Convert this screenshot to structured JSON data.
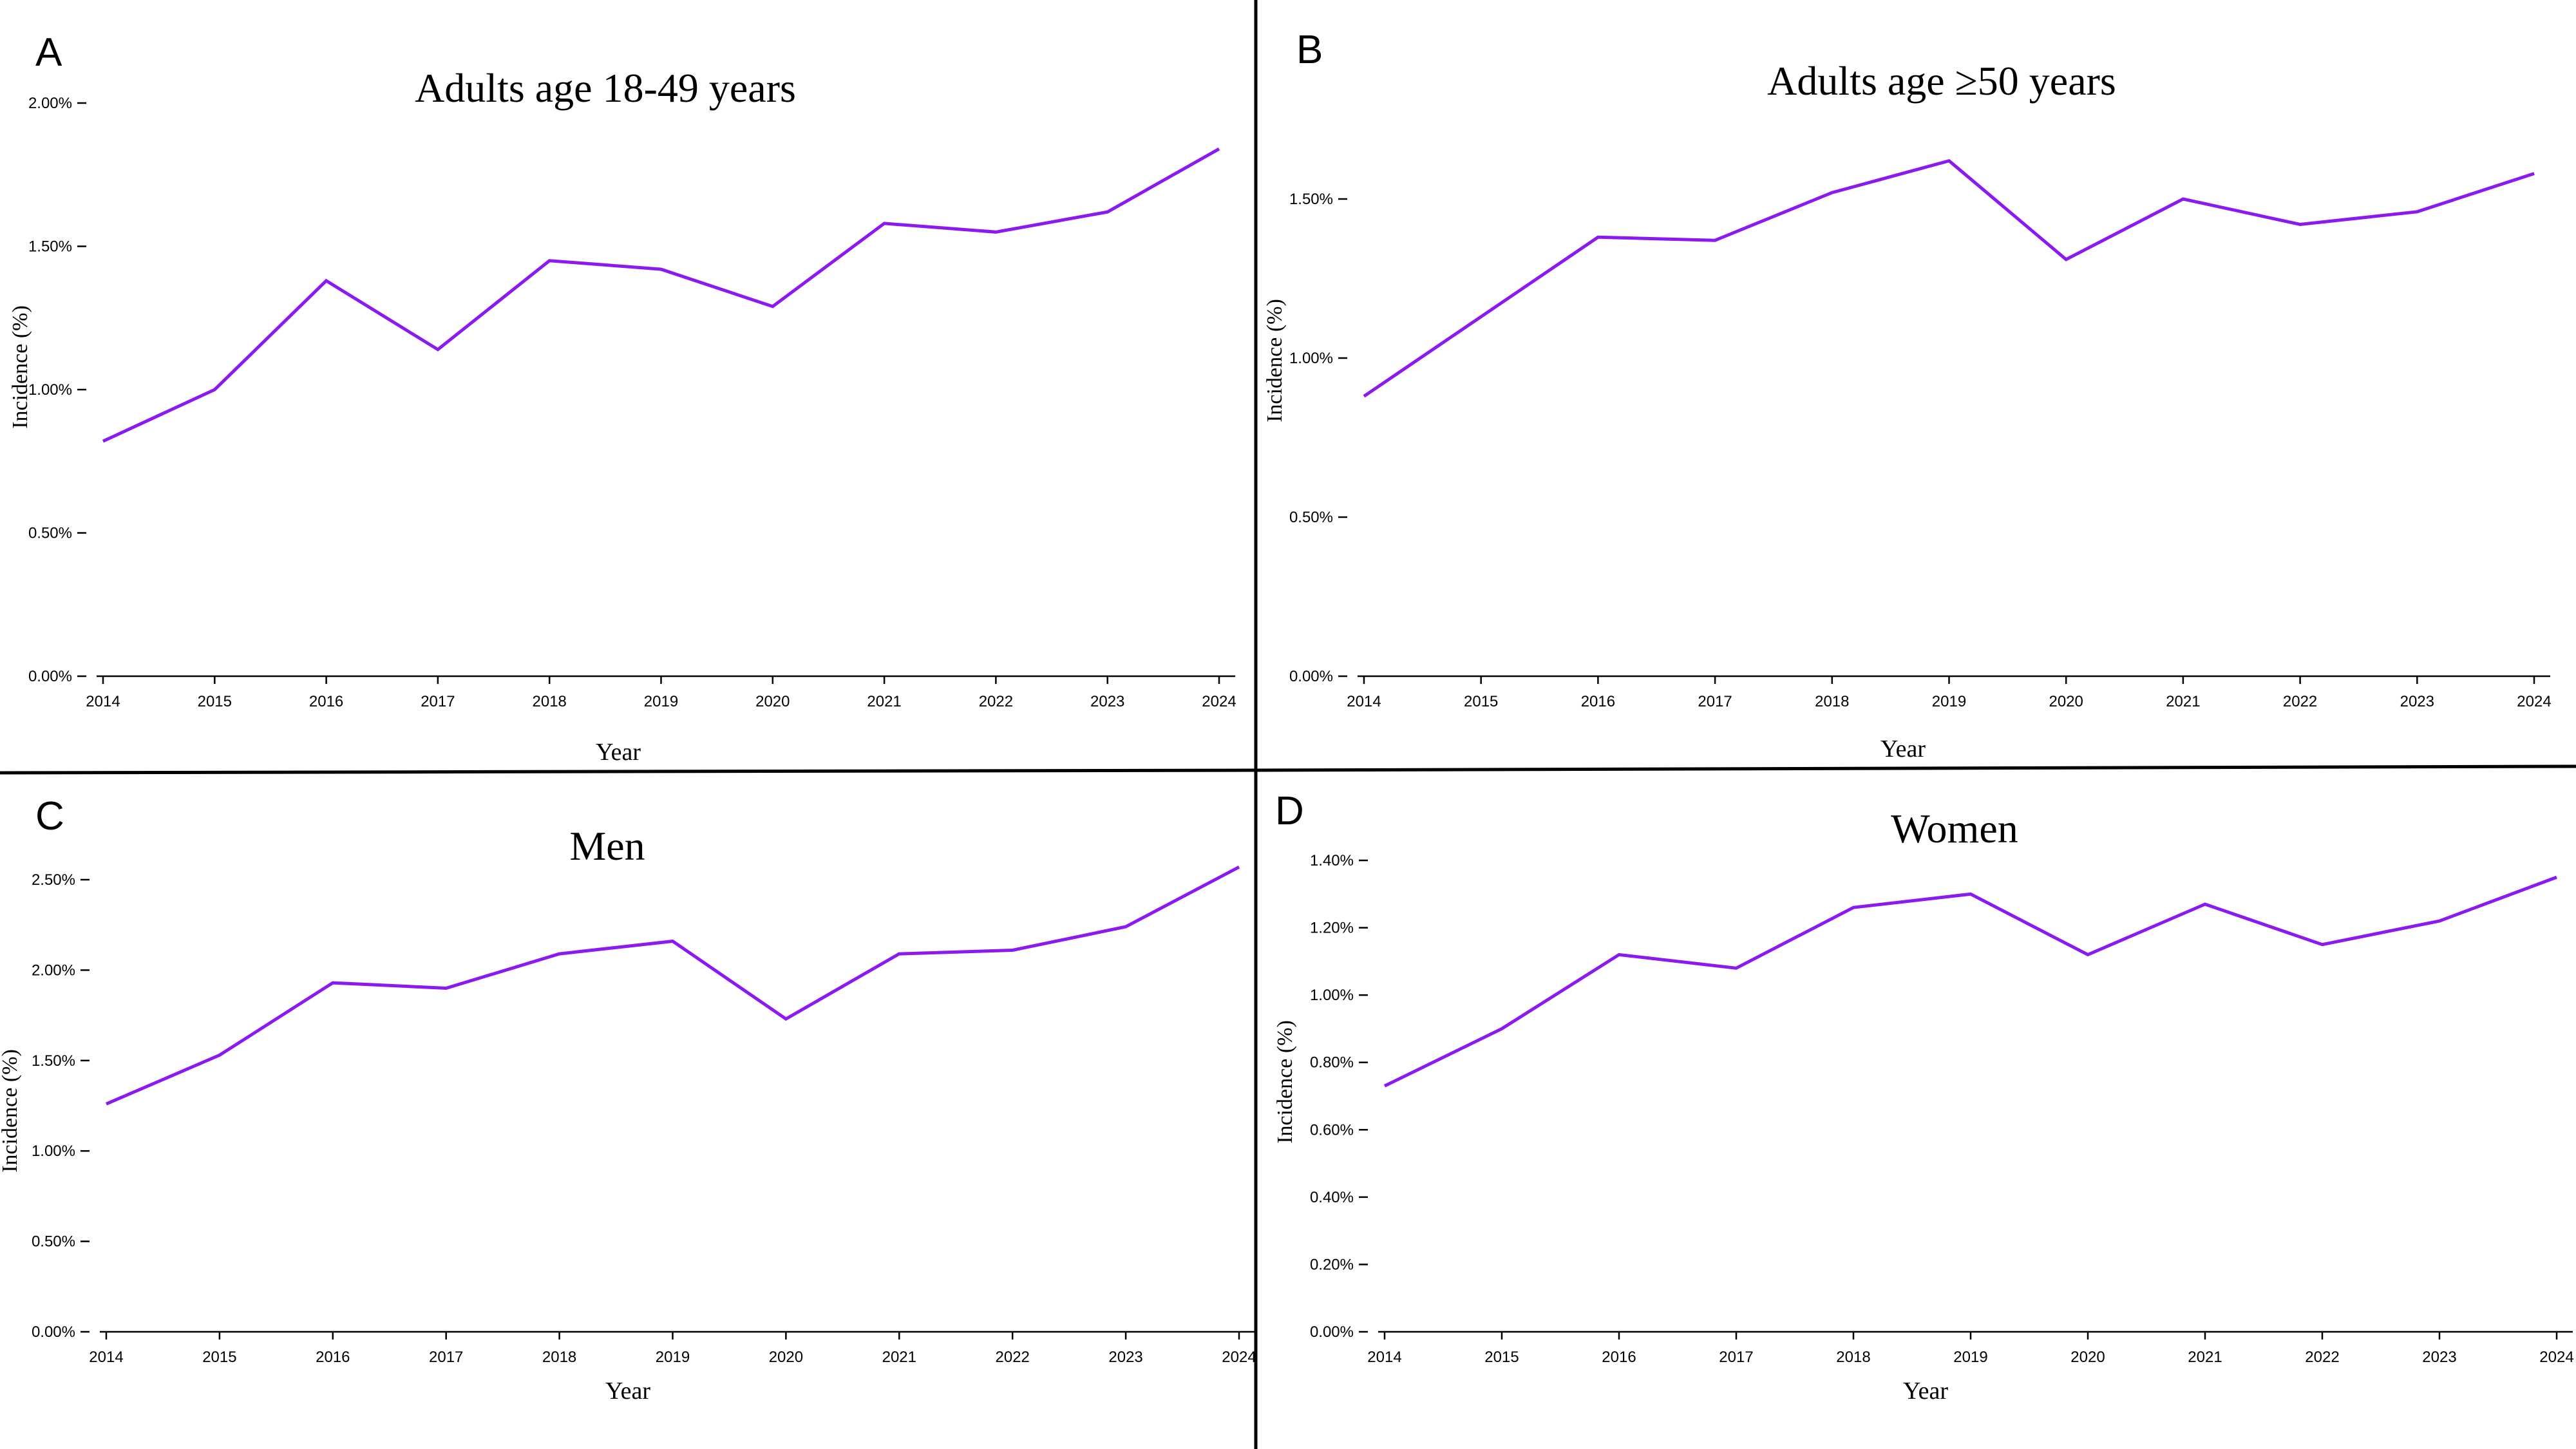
{
  "colors": {
    "line": "#8B1AF0"
  },
  "chart_data": [
    {
      "panel": "A",
      "type": "line",
      "title": "Adults age 18-49 years",
      "xlabel": "Year",
      "ylabel": "Incidence (%)",
      "x": [
        2014,
        2015,
        2016,
        2017,
        2018,
        2019,
        2020,
        2021,
        2022,
        2023,
        2024
      ],
      "values": [
        0.82,
        1.0,
        1.38,
        1.14,
        1.45,
        1.42,
        1.29,
        1.58,
        1.55,
        1.62,
        1.84
      ],
      "ylim": [
        0,
        2.0
      ],
      "yticks": [
        0,
        0.5,
        1.0,
        1.5,
        2.0
      ],
      "ytick_labels": [
        "0.00%",
        "0.50%",
        "1.00%",
        "1.50%",
        "2.00%"
      ],
      "grid": false
    },
    {
      "panel": "B",
      "type": "line",
      "title": "Adults age ≥50 years",
      "xlabel": "Year",
      "ylabel": "Incidence (%)",
      "x": [
        2014,
        2015,
        2016,
        2017,
        2018,
        2019,
        2020,
        2021,
        2022,
        2023,
        2024
      ],
      "values": [
        0.88,
        1.13,
        1.38,
        1.37,
        1.52,
        1.62,
        1.31,
        1.5,
        1.42,
        1.46,
        1.58
      ],
      "ylim": [
        0,
        1.5
      ],
      "yticks": [
        0,
        0.5,
        1.0,
        1.5
      ],
      "ytick_labels": [
        "0.00%",
        "0.50%",
        "1.00%",
        "1.50%"
      ],
      "grid": false
    },
    {
      "panel": "C",
      "type": "line",
      "title": "Men",
      "xlabel": "Year",
      "ylabel": "Incidence (%)",
      "x": [
        2014,
        2015,
        2016,
        2017,
        2018,
        2019,
        2020,
        2021,
        2022,
        2023,
        2024
      ],
      "values": [
        1.26,
        1.53,
        1.93,
        1.9,
        2.09,
        2.16,
        1.73,
        2.09,
        2.11,
        2.24,
        2.57
      ],
      "ylim": [
        0,
        2.5
      ],
      "yticks": [
        0,
        0.5,
        1.0,
        1.5,
        2.0,
        2.5
      ],
      "ytick_labels": [
        "0.00%",
        "0.50%",
        "1.00%",
        "1.50%",
        "2.00%",
        "2.50%"
      ],
      "grid": false
    },
    {
      "panel": "D",
      "type": "line",
      "title": "Women",
      "xlabel": "Year",
      "ylabel": "Incidence (%)",
      "x": [
        2014,
        2015,
        2016,
        2017,
        2018,
        2019,
        2020,
        2021,
        2022,
        2023,
        2024
      ],
      "values": [
        0.73,
        0.9,
        1.12,
        1.08,
        1.26,
        1.3,
        1.12,
        1.27,
        1.15,
        1.22,
        1.35
      ],
      "ylim": [
        0,
        1.4
      ],
      "yticks": [
        0,
        0.2,
        0.4,
        0.6,
        0.8,
        1.0,
        1.2,
        1.4
      ],
      "ytick_labels": [
        "0.00%",
        "0.20%",
        "0.40%",
        "0.60%",
        "0.80%",
        "1.00%",
        "1.20%",
        "1.40%"
      ],
      "grid": false
    }
  ]
}
